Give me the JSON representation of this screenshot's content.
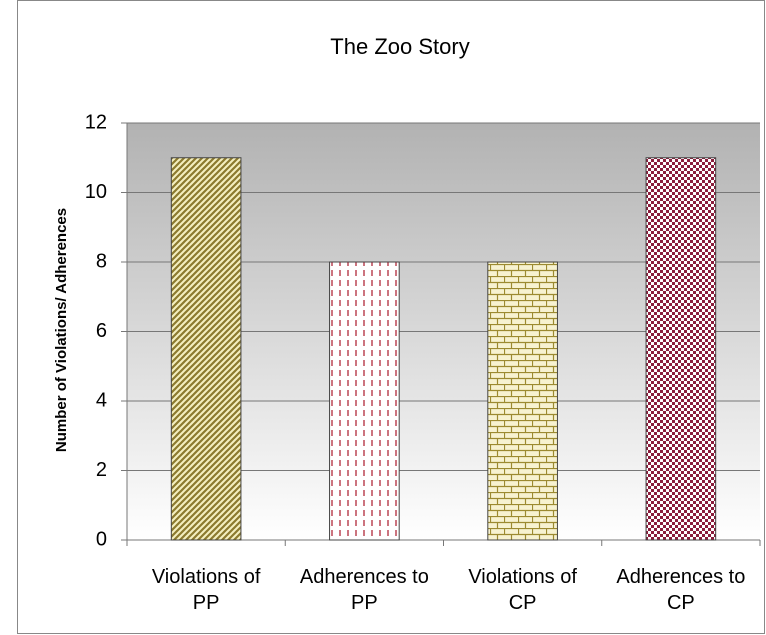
{
  "chart_data": {
    "type": "bar",
    "title": "The Zoo Story",
    "y_label": "Number of Violations/ Adherences",
    "categories": [
      "Violations of PP",
      "Adherences to PP",
      "Violations of CP",
      "Adherences to CP"
    ],
    "values": [
      11,
      8,
      8,
      11
    ],
    "colors": [
      "#8c7a2e",
      "#b02a3a",
      "#9c8a30",
      "#8b1d3c"
    ],
    "ylim": [
      0,
      12
    ],
    "yticks": [
      0,
      2,
      4,
      6,
      8,
      10,
      12
    ],
    "grid": true
  }
}
